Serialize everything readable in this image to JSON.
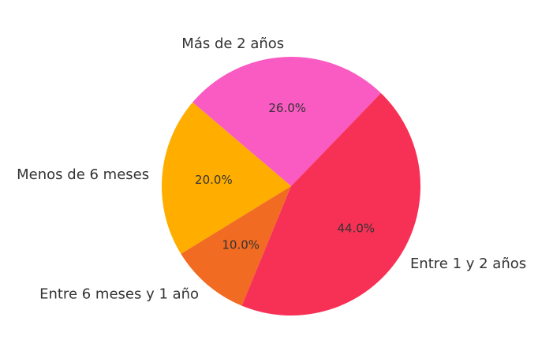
{
  "chart_data": {
    "type": "pie",
    "categories": [
      "Más de 2 años",
      "Menos de 6 meses",
      "Entre 6 meses y 1 año",
      "Entre 1 y 2 años"
    ],
    "values": [
      26,
      20,
      10,
      44
    ],
    "value_labels": [
      "26.0%",
      "20.0%",
      "10.0%",
      "44.0%"
    ],
    "colors": [
      "#f95bc3",
      "#ffae00",
      "#f26b22",
      "#f73156"
    ],
    "startangle": 46,
    "counterclockwise": true
  }
}
